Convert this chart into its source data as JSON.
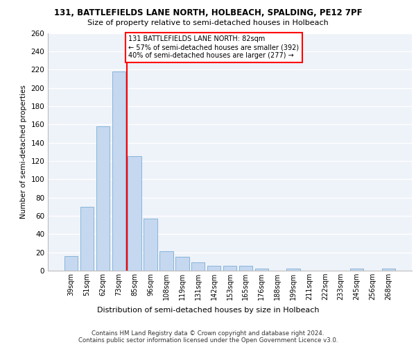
{
  "title1": "131, BATTLEFIELDS LANE NORTH, HOLBEACH, SPALDING, PE12 7PF",
  "title2": "Size of property relative to semi-detached houses in Holbeach",
  "xlabel": "Distribution of semi-detached houses by size in Holbeach",
  "ylabel": "Number of semi-detached properties",
  "categories": [
    "39sqm",
    "51sqm",
    "62sqm",
    "73sqm",
    "85sqm",
    "96sqm",
    "108sqm",
    "119sqm",
    "131sqm",
    "142sqm",
    "153sqm",
    "165sqm",
    "176sqm",
    "188sqm",
    "199sqm",
    "211sqm",
    "222sqm",
    "233sqm",
    "245sqm",
    "256sqm",
    "268sqm"
  ],
  "values": [
    16,
    70,
    158,
    218,
    125,
    57,
    21,
    15,
    9,
    5,
    5,
    5,
    2,
    0,
    2,
    0,
    0,
    0,
    2,
    0,
    2
  ],
  "bar_color": "#c5d8f0",
  "bar_edge_color": "#7aadd4",
  "vline_color": "red",
  "annotation_text": "131 BATTLEFIELDS LANE NORTH: 82sqm\n← 57% of semi-detached houses are smaller (392)\n40% of semi-detached houses are larger (277) →",
  "annotation_box_color": "white",
  "annotation_box_edge": "red",
  "footer": "Contains HM Land Registry data © Crown copyright and database right 2024.\nContains public sector information licensed under the Open Government Licence v3.0.",
  "ylim": [
    0,
    260
  ],
  "yticks": [
    0,
    20,
    40,
    60,
    80,
    100,
    120,
    140,
    160,
    180,
    200,
    220,
    240,
    260
  ],
  "bg_color": "#eef2f9",
  "grid_color": "white"
}
